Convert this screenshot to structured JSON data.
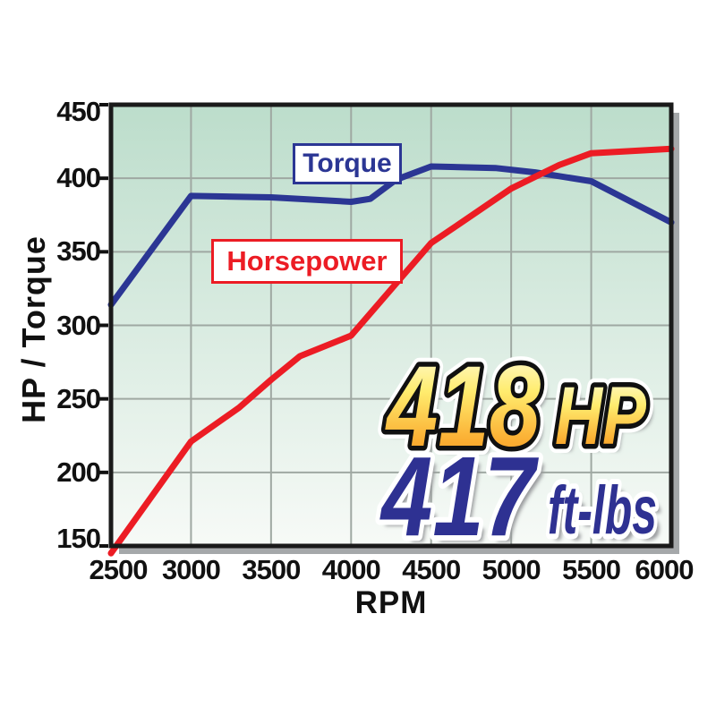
{
  "figure": {
    "type_note": "engine dyno graph",
    "xlabel": "RPM",
    "ylabel": "HP / Torque"
  },
  "chart_data": {
    "type": "line",
    "title": "",
    "xlabel": "RPM",
    "ylabel": "HP / Torque",
    "xlim": [
      2500,
      6000
    ],
    "ylim": [
      150,
      450
    ],
    "x_ticks": [
      2500,
      3000,
      3500,
      4000,
      4500,
      5000,
      5500,
      6000
    ],
    "y_ticks": [
      150,
      200,
      250,
      300,
      350,
      400,
      450
    ],
    "grid": true,
    "legend_position": "boxed labels inside plot",
    "series": [
      {
        "name": "Torque",
        "color": "#2B3694",
        "points": [
          [
            2500,
            314
          ],
          [
            3000,
            388
          ],
          [
            3500,
            387
          ],
          [
            4000,
            384
          ],
          [
            4120,
            386
          ],
          [
            4280,
            399
          ],
          [
            4500,
            408
          ],
          [
            4900,
            407
          ],
          [
            5150,
            404
          ],
          [
            5500,
            398
          ],
          [
            6000,
            370
          ]
        ]
      },
      {
        "name": "Horsepower",
        "color": "#EC1C24",
        "points": [
          [
            2500,
            145
          ],
          [
            3000,
            221
          ],
          [
            3300,
            244
          ],
          [
            3500,
            263
          ],
          [
            3680,
            279
          ],
          [
            4000,
            293
          ],
          [
            4500,
            356
          ],
          [
            4650,
            367
          ],
          [
            5000,
            393
          ],
          [
            5300,
            409
          ],
          [
            5500,
            417
          ],
          [
            6000,
            420
          ]
        ]
      }
    ],
    "annotations": {
      "peak_hp_value": "418",
      "peak_hp_unit": "HP",
      "peak_torque_value": "417",
      "peak_torque_unit": "ft-lbs"
    }
  },
  "colors": {
    "plot_bg_top": "#BCDDCB",
    "plot_bg_bottom": "#F7FAF7",
    "gridline": "#9FA8A2",
    "border": "#1A1A1A",
    "plot_shadow": "#A5A8AA",
    "torque_blue": "#2B3694",
    "horsepower_red": "#EC1C24",
    "callout_blue": "#2E3192",
    "callout_shadow": "#97999B",
    "gold_stops": [
      "#FFFDE6",
      "#FFEC6E",
      "#FBB034",
      "#F6921E"
    ],
    "tick_text": "#111111"
  }
}
